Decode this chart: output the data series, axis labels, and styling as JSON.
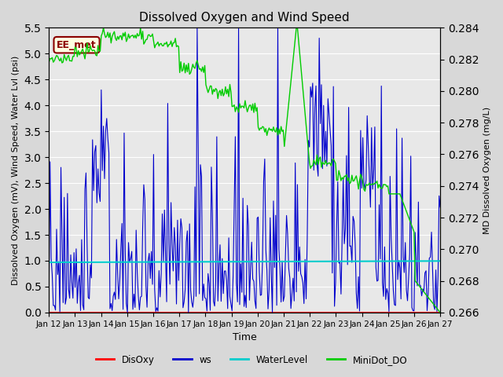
{
  "title": "Dissolved Oxygen and Wind Speed",
  "xlabel": "Time",
  "ylabel_left": "Dissolved Oxygen (mV), Wind Speed, Water Lvl (psi)",
  "ylabel_right": "MD Dissolved Oxygen (mg/L)",
  "ylim_left": [
    0.0,
    5.5
  ],
  "ylim_right": [
    0.266,
    0.284
  ],
  "yticks_left": [
    0.0,
    0.5,
    1.0,
    1.5,
    2.0,
    2.5,
    3.0,
    3.5,
    4.0,
    4.5,
    5.0,
    5.5
  ],
  "yticks_right": [
    0.266,
    0.268,
    0.27,
    0.272,
    0.274,
    0.276,
    0.278,
    0.28,
    0.282,
    0.284
  ],
  "xtick_labels": [
    "Jan 12",
    "Jan 13",
    "Jan 14",
    "Jan 15",
    "Jan 16",
    "Jan 17",
    "Jan 18",
    "Jan 19",
    "Jan 20",
    "Jan 21",
    "Jan 22",
    "Jan 23",
    "Jan 24",
    "Jan 25",
    "Jan 26",
    "Jan 27"
  ],
  "station_label": "EE_met",
  "fig_facecolor": "#d8d8d8",
  "ax_facecolor": "#e8e8e8",
  "grid_color": "#ffffff",
  "colors": {
    "DisOxy": "#ff0000",
    "ws": "#0000cc",
    "WaterLevel": "#00cccc",
    "MiniDot_DO": "#00cc00"
  },
  "seed": 42
}
